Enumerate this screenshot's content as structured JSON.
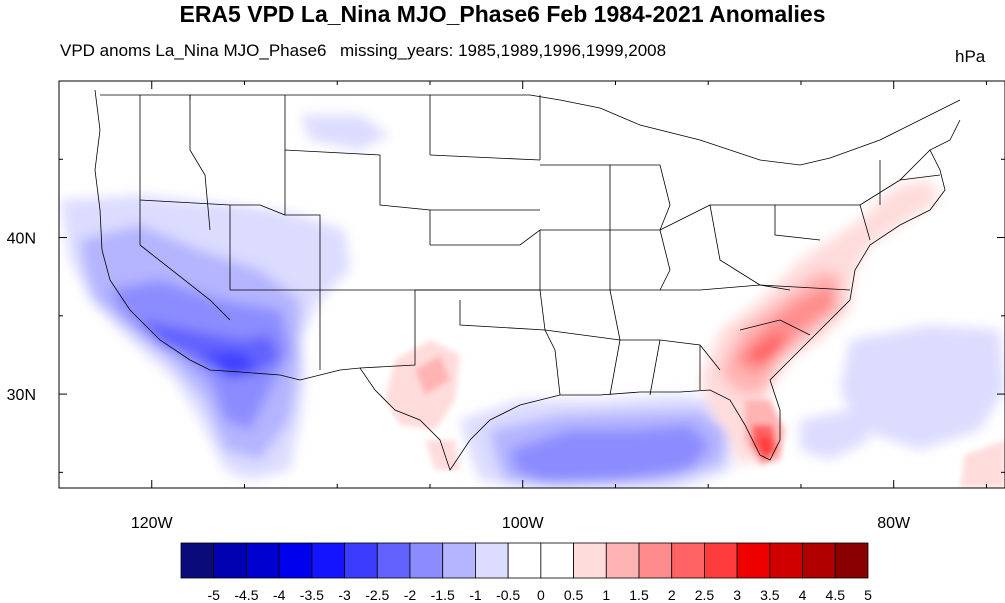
{
  "title": "ERA5 VPD La_Nina MJO_Phase6 Feb 1984-2021 Anomalies",
  "subtitle_left": "VPD anoms La_Nina MJO_Phase6",
  "subtitle_mid": "missing_years: 1985,1989,1996,1999,2008",
  "units": "hPa",
  "lat_ticks": [
    {
      "value": 40,
      "label": "40N"
    },
    {
      "value": 30,
      "label": "30N"
    }
  ],
  "lon_ticks": [
    {
      "value": -120,
      "label": "120W"
    },
    {
      "value": -100,
      "label": "100W"
    },
    {
      "value": -80,
      "label": "80W"
    }
  ],
  "map_extent": {
    "lon": [
      -125,
      -74
    ],
    "lat": [
      24,
      50
    ]
  },
  "colorbar": {
    "labels": [
      "-5",
      "-4.5",
      "-4",
      "-3.5",
      "-3",
      "-2.5",
      "-2",
      "-1.5",
      "-1",
      "-0.5",
      "0",
      "0.5",
      "1",
      "1.5",
      "2",
      "2.5",
      "3",
      "3.5",
      "4",
      "4.5",
      "5"
    ],
    "colors": [
      "#0a0a7a",
      "#0000b0",
      "#0000d0",
      "#0000ee",
      "#1414ff",
      "#3c3cff",
      "#6262ff",
      "#8c8cff",
      "#b4b4ff",
      "#dcdcff",
      "#ffffff",
      "#ffffff",
      "#ffdcdc",
      "#ffb4b4",
      "#ff8c8c",
      "#ff6262",
      "#ff3c3c",
      "#ee0000",
      "#d00000",
      "#b00000",
      "#8a0000"
    ]
  }
}
